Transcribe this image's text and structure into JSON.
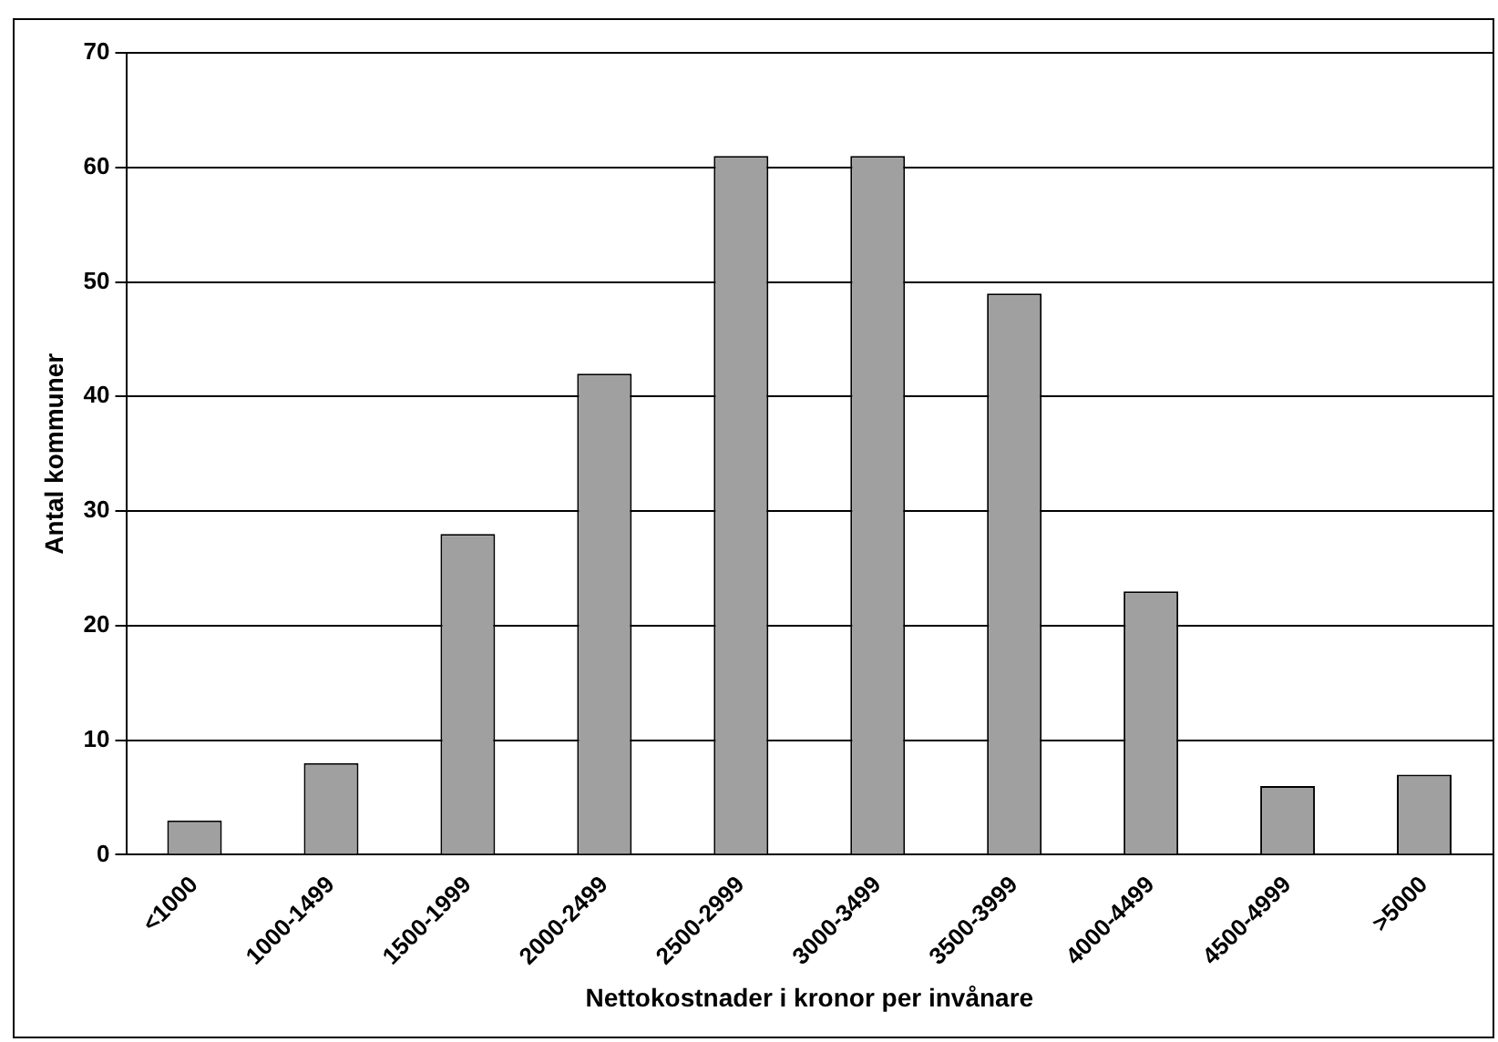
{
  "chart_data": {
    "type": "bar",
    "xlabel": "Nettokostnader i kronor per invånare",
    "ylabel": "Antal kommuner",
    "categories": [
      "<1000",
      "1000-1499",
      "1500-1999",
      "2000-2499",
      "2500-2999",
      "3000-3499",
      "3500-3999",
      "4000-4499",
      "4500-4999",
      ">5000"
    ],
    "values": [
      3,
      8,
      28,
      42,
      61,
      61,
      49,
      23,
      6,
      7
    ],
    "color": "#a0a0a0",
    "ylim": [
      0,
      70
    ],
    "yticks": [
      0,
      10,
      20,
      30,
      40,
      50,
      60,
      70
    ],
    "grid": "y",
    "legend": false
  }
}
